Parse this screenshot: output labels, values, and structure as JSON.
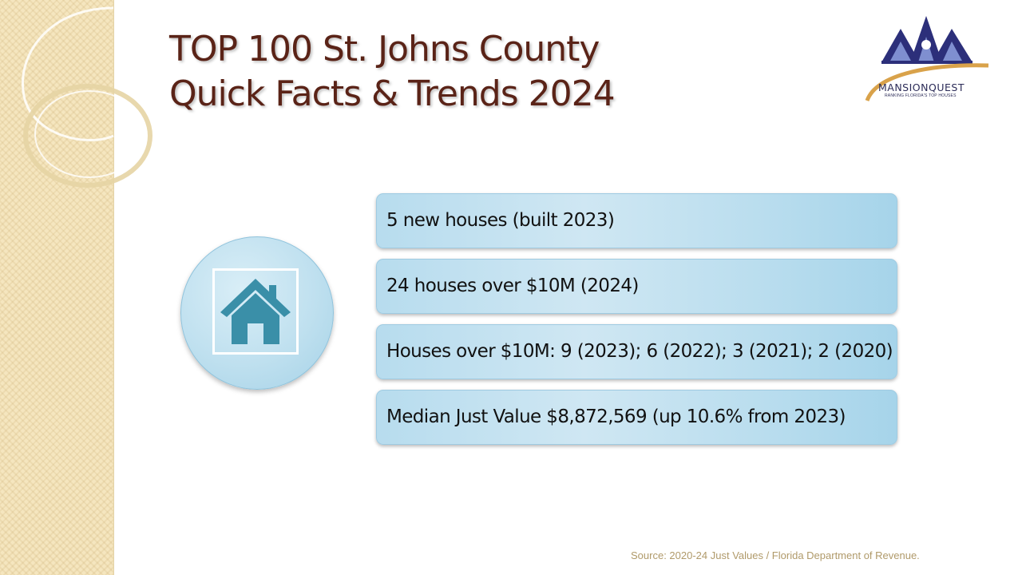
{
  "slide": {
    "title_line1": "TOP 100 St. Johns County",
    "title_line2": "Quick Facts & Trends 2024",
    "logo": {
      "name": "MANSIONQUEST",
      "tagline": "RANKING FLORIDA'S TOP HOUSES"
    },
    "icon": "house-icon",
    "facts": [
      "5 new houses (built 2023)",
      "24 houses over $10M (2024)",
      "Houses over $10M: 9 (2023); 6 (2022); 3 (2021); 2 (2020)",
      "Median Just Value $8,872,569 (up 10.6% from 2023)"
    ],
    "source": "Source: 2020-24 Just Values / Florida Department of Revenue."
  },
  "colors": {
    "title": "#5a2317",
    "accent_blue": "#3a8fa8",
    "fact_background": "#bfe0ef",
    "side_band": "#f5e6bf",
    "source_text": "#b09a6a"
  }
}
